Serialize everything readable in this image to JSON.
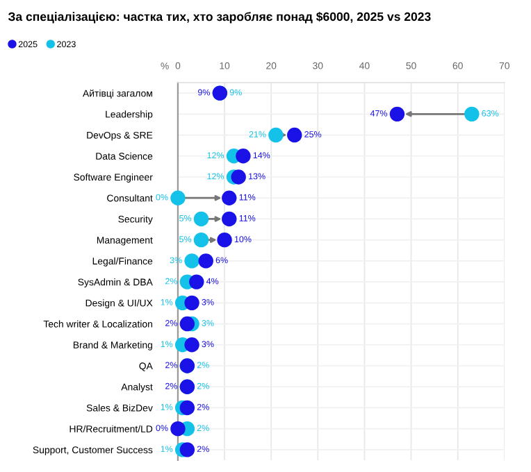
{
  "chart_data": {
    "type": "scatter",
    "title": "За спеціалізацією: частка тих, хто заробляє понад $6000, 2025 vs 2023",
    "xlabel": "%",
    "categories": [
      "Айтівці загалом",
      "Leadership",
      "DevOps & SRE",
      "Data Science",
      "Software Engineer",
      "Consultant",
      "Security",
      "Management",
      "Legal/Finance",
      "SysAdmin & DBA",
      "Design & UI/UX",
      "Tech writer & Localization",
      "Brand & Marketing",
      "QA",
      "Analyst",
      "Sales & BizDev",
      "HR/Recruitment/LD",
      "Support, Customer Success"
    ],
    "series": [
      {
        "name": "2025",
        "color": "#1a12e6",
        "values": [
          9,
          47,
          25,
          14,
          13,
          11,
          11,
          10,
          6,
          4,
          3,
          2,
          3,
          2,
          2,
          2,
          0,
          2
        ],
        "value_labels": [
          "9%",
          "47%",
          "25%",
          "14%",
          "13%",
          "11%",
          "11%",
          "10%",
          "6%",
          "4%",
          "3%",
          "2%",
          "3%",
          "2%",
          "2%",
          "2%",
          "0%",
          "2%"
        ]
      },
      {
        "name": "2023",
        "color": "#14c1e8",
        "values": [
          9,
          63,
          21,
          12,
          12,
          0,
          5,
          5,
          3,
          2,
          1,
          3,
          1,
          2,
          2,
          1,
          2,
          1
        ],
        "value_labels": [
          "9%",
          "63%",
          "21%",
          "12%",
          "12%",
          "0%",
          "5%",
          "5%",
          "3%",
          "2%",
          "1%",
          "3%",
          "1%",
          "2%",
          "2%",
          "1%",
          "2%",
          "1%"
        ]
      }
    ],
    "xlim": [
      0,
      70
    ],
    "xticks": [
      0,
      10,
      20,
      30,
      40,
      50,
      60,
      70
    ],
    "grid": true,
    "legend": "top left",
    "marker": "circle",
    "orientation": "horizontal"
  }
}
